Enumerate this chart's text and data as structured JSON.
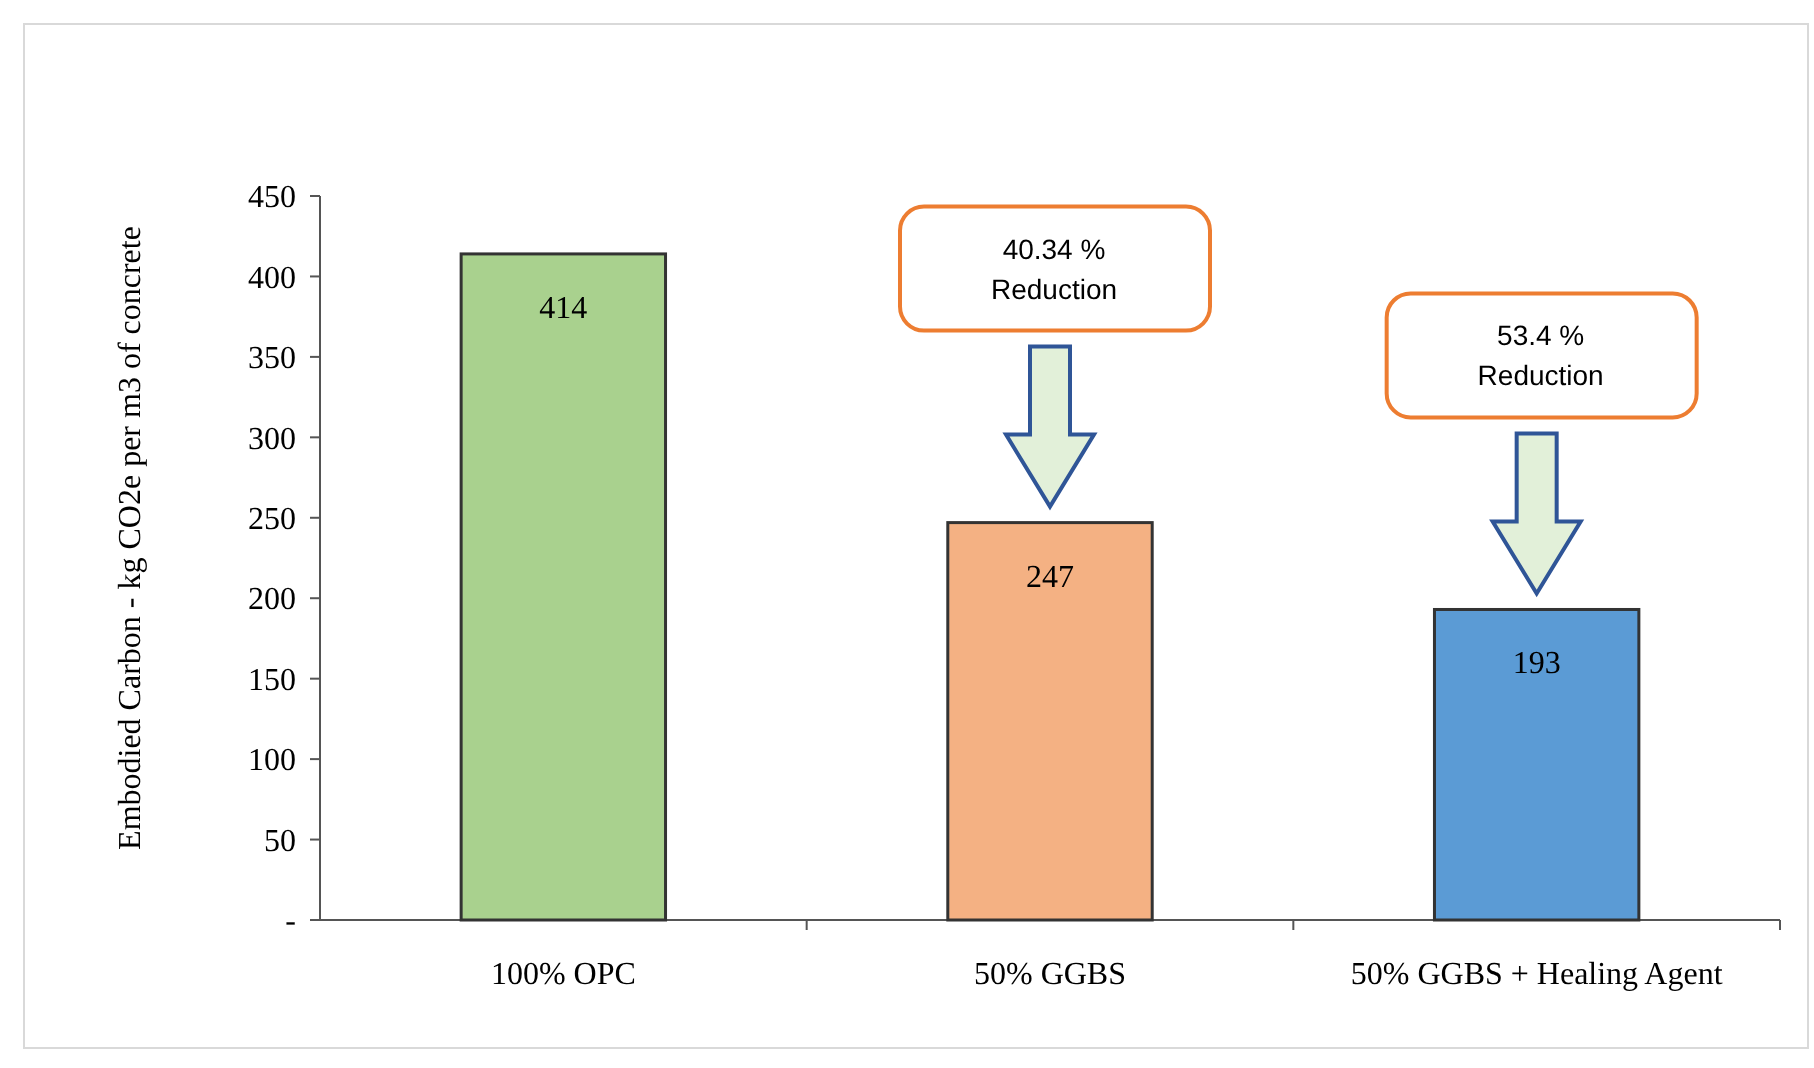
{
  "chart_data": {
    "type": "bar",
    "ylabel": "Embodied Carbon - kg CO2e per m3 of concrete",
    "categories": [
      "100% OPC",
      "50% GGBS",
      "50% GGBS + Healing Agent"
    ],
    "values": [
      414,
      247,
      193
    ],
    "colors": [
      "#a9d18e",
      "#f4b183",
      "#5b9bd5"
    ],
    "ylim": [
      0,
      450
    ],
    "yticks": [
      {
        "value": 0,
        "label": "-"
      },
      50,
      100,
      150,
      200,
      250,
      300,
      350,
      400,
      450
    ],
    "data_labels": true,
    "grid": false,
    "annotations": [
      "40.34 %\nReduction",
      "53.4 %\nReduction"
    ]
  }
}
